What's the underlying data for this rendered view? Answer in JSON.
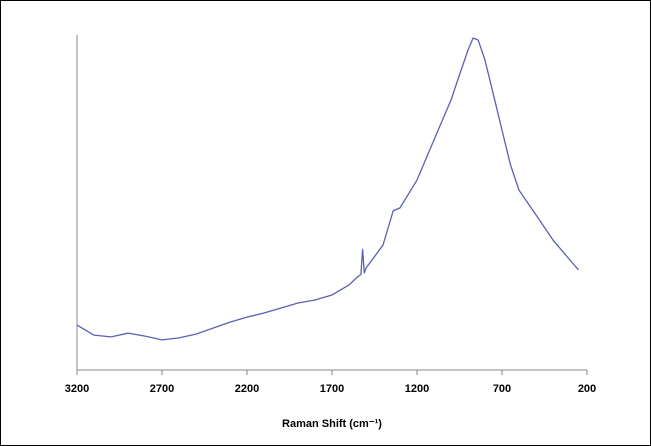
{
  "chart_data": {
    "type": "line",
    "xlabel": "Raman Shift (cm⁻¹)",
    "x": [
      3200,
      3100,
      3000,
      2900,
      2800,
      2700,
      2600,
      2500,
      2400,
      2300,
      2200,
      2100,
      2000,
      1900,
      1800,
      1700,
      1600,
      1550,
      1530,
      1520,
      1510,
      1500,
      1400,
      1340,
      1300,
      1200,
      1100,
      1000,
      950,
      900,
      870,
      840,
      800,
      750,
      700,
      650,
      600,
      500,
      400,
      300,
      250
    ],
    "series": [
      {
        "color": "#5b60b3",
        "values": [
          13.4,
          10.4,
          9.9,
          11.0,
          10.1,
          9.0,
          9.6,
          10.7,
          12.5,
          14.3,
          15.8,
          17.0,
          18.5,
          20.0,
          20.9,
          22.4,
          25.4,
          27.8,
          28.5,
          36.0,
          29.0,
          30.4,
          37.3,
          47.5,
          48.4,
          56.7,
          68.7,
          80.6,
          88.1,
          95.5,
          99.1,
          98.5,
          92.5,
          82.1,
          71.6,
          61.2,
          53.7,
          46.3,
          38.8,
          32.8,
          29.9
        ]
      }
    ],
    "xlim": [
      3200,
      200
    ],
    "xticks": [
      3200,
      2700,
      2200,
      1700,
      1200,
      700,
      200
    ],
    "ylim": [
      0,
      100
    ]
  }
}
